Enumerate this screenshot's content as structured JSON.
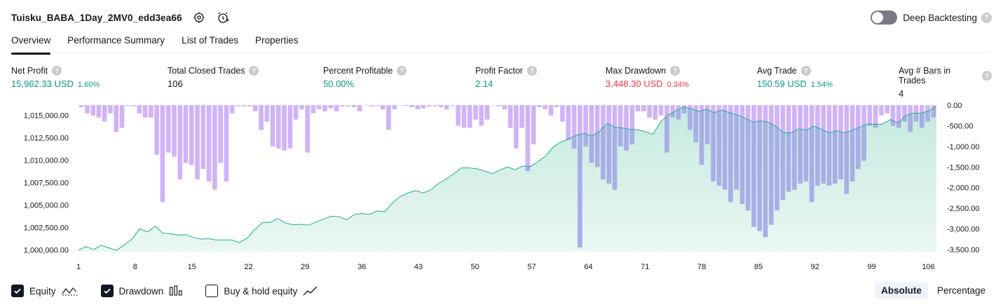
{
  "header": {
    "strategy_name": "Tuisku_BABA_1Day_2MV0_edd3ea66",
    "deep_backtesting_label": "Deep Backtesting",
    "deep_backtesting_enabled": false,
    "help_glyph": "?"
  },
  "tabs": [
    {
      "label": "Overview",
      "active": true
    },
    {
      "label": "Performance Summary",
      "active": false
    },
    {
      "label": "List of Trades",
      "active": false
    },
    {
      "label": "Properties",
      "active": false
    }
  ],
  "metrics": [
    {
      "label": "Net Profit",
      "value": "15,962.33 USD",
      "percent": "1.60%",
      "color": "green"
    },
    {
      "label": "Total Closed Trades",
      "value": "106",
      "percent": "",
      "color": "dark"
    },
    {
      "label": "Percent Profitable",
      "value": "50.00%",
      "percent": "",
      "color": "green"
    },
    {
      "label": "Profit Factor",
      "value": "2.14",
      "percent": "",
      "color": "green"
    },
    {
      "label": "Max Drawdown",
      "value": "3,448.30 USD",
      "percent": "0.34%",
      "color": "red"
    },
    {
      "label": "Avg Trade",
      "value": "150.59 USD",
      "percent": "1.54%",
      "color": "green"
    },
    {
      "label": "Avg # Bars in Trades",
      "value": "4",
      "percent": "",
      "color": "dark"
    }
  ],
  "legend": {
    "equity_label": "Equity",
    "drawdown_label": "Drawdown",
    "buy_hold_label": "Buy & hold equity",
    "equity_checked": true,
    "drawdown_checked": true,
    "buy_hold_checked": false
  },
  "scale_switch": {
    "absolute_label": "Absolute",
    "percentage_label": "Percentage",
    "active": "absolute"
  },
  "colors": {
    "equity_line": "#22ab94",
    "equity_fill_top": "#c5eadf",
    "equity_fill_bottom": "#eaf7f3",
    "drawdown_bar": "#d1b3f7",
    "drawdown_bar_overlap": "#a8aee6",
    "green": "#089981",
    "red": "#f23645"
  },
  "chart_data": {
    "type": "area",
    "x_tick_labels": [
      "1",
      "8",
      "15",
      "22",
      "29",
      "36",
      "43",
      "50",
      "57",
      "64",
      "71",
      "78",
      "85",
      "92",
      "99",
      "106"
    ],
    "x_ticks": [
      1,
      8,
      15,
      22,
      29,
      36,
      43,
      50,
      57,
      64,
      71,
      78,
      85,
      92,
      99,
      106
    ],
    "xlim": [
      1,
      107
    ],
    "left_axis": {
      "ylim": [
        999800,
        1016150
      ],
      "tick_values": [
        1000000,
        1002500,
        1005000,
        1007500,
        1010000,
        1012500,
        1015000
      ],
      "tick_labels": [
        "1,000,000.00",
        "1,002,500.00",
        "1,005,000.00",
        "1,007,500.00",
        "1,010,000.00",
        "1,012,500.00",
        "1,015,000.00"
      ]
    },
    "right_axis": {
      "ylim": [
        0,
        -3550
      ],
      "tick_values": [
        0,
        -500,
        -1000,
        -1500,
        -2000,
        -2500,
        -3000,
        -3500
      ],
      "tick_labels": [
        "0.00",
        "-500.00",
        "-1,000.00",
        "-1,500.00",
        "-2,000.00",
        "-2,500.00",
        "-3,000.00",
        "-3,500.00"
      ]
    },
    "series": [
      {
        "name": "Equity",
        "axis": "left",
        "values": [
          999980,
          1000350,
          1000050,
          1000500,
          1000200,
          999950,
          1000600,
          1001200,
          1002350,
          1002000,
          1002650,
          1001850,
          1001800,
          1001650,
          1001700,
          1001400,
          1001200,
          1001250,
          1001100,
          1001100,
          1001100,
          1000800,
          1001300,
          1002250,
          1003050,
          1003050,
          1003500,
          1003000,
          1002800,
          1002850,
          1002750,
          1003100,
          1003450,
          1003750,
          1003700,
          1003350,
          1003950,
          1004050,
          1003950,
          1004350,
          1004250,
          1005250,
          1005950,
          1006350,
          1006600,
          1006350,
          1006700,
          1007400,
          1007900,
          1008500,
          1009150,
          1009150,
          1009050,
          1008800,
          1008500,
          1008900,
          1009250,
          1008950,
          1009350,
          1009300,
          1009850,
          1010500,
          1011500,
          1012050,
          1012400,
          1012800,
          1013000,
          1012700,
          1013200,
          1014100,
          1013700,
          1013600,
          1013450,
          1013400,
          1013200,
          1012900,
          1014300,
          1015050,
          1015550,
          1015950,
          1015750,
          1015450,
          1015700,
          1015300,
          1015600,
          1015300,
          1015050,
          1014700,
          1014250,
          1014400,
          1014250,
          1013800,
          1013100,
          1013050,
          1013500,
          1013350,
          1013800,
          1013450,
          1013050,
          1013300,
          1013050,
          1013350,
          1013700,
          1014050,
          1014000,
          1014050,
          1014550,
          1014150,
          1015000,
          1015250,
          1015250,
          1015500,
          1016000
        ]
      },
      {
        "name": "Drawdown",
        "axis": "right",
        "values": [
          -50,
          -200,
          -250,
          -300,
          -400,
          -200,
          -650,
          -550,
          -20,
          -30,
          -200,
          -300,
          -300,
          -1200,
          -2350,
          -1150,
          -1250,
          -1800,
          -1400,
          -1450,
          -1800,
          -1550,
          -1850,
          -2050,
          -1400,
          -1850,
          -200,
          -30,
          -30,
          -30,
          -150,
          -600,
          -400,
          -1000,
          -1050,
          -1100,
          -1050,
          -350,
          -100,
          -1150,
          -200,
          -100,
          -150,
          -80,
          -150,
          -30,
          -30,
          -50,
          -150,
          -10,
          -30,
          -20,
          -100,
          -600,
          -100,
          -10,
          -20,
          -50,
          -100,
          -80,
          -30,
          -30,
          -50,
          -100,
          -20,
          -500,
          -550,
          -550,
          -350,
          -500,
          -350,
          -10,
          -30,
          -100,
          -550,
          -1050,
          -550,
          -1600,
          -950,
          -50,
          -100,
          -250,
          -50,
          -400,
          -850,
          -1050,
          -3450,
          -1000,
          -1400,
          -1500,
          -1800,
          -1900,
          -2050,
          -1000,
          -1100,
          -950,
          -150,
          -150,
          -300,
          -350,
          -250,
          -1150,
          -300,
          -350,
          -200,
          -600,
          -900,
          -1450,
          -950,
          -1850,
          -1950,
          -2050,
          -2350,
          -2050,
          -2400,
          -2550,
          -2950,
          -3050,
          -3200,
          -2900,
          -2550,
          -2300,
          -2100,
          -2050,
          -1900,
          -1850,
          -2350,
          -1950,
          -1900,
          -1950,
          -1900,
          -1800,
          -2150,
          -1850,
          -1550,
          -1350,
          -500,
          -550,
          -250,
          -200,
          -500,
          -550,
          -400,
          -650,
          -400,
          -550,
          -400,
          -300
        ]
      }
    ],
    "legend_entries": [
      "Equity",
      "Drawdown",
      "Buy & hold equity"
    ],
    "grid": false
  }
}
